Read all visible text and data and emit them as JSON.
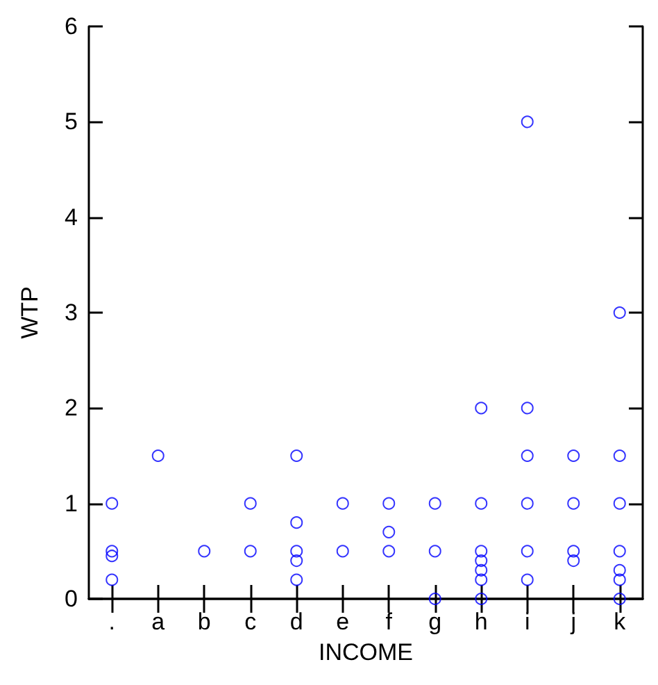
{
  "chart_data": {
    "type": "scatter",
    "xlabel": "INCOME",
    "ylabel": "WTP",
    "categories": [
      ".",
      "a",
      "b",
      "c",
      "d",
      "e",
      "f",
      "g",
      "h",
      "i",
      "j",
      "k"
    ],
    "series": [
      {
        "color": "#0000ff",
        "x": [
          ".",
          ".",
          ".",
          ".",
          "a",
          "b",
          "c",
          "c",
          "d",
          "d",
          "d",
          "d",
          "d",
          "e",
          "e",
          "f",
          "f",
          "f",
          "g",
          "g",
          "g",
          "h",
          "h",
          "h",
          "h",
          "h",
          "h",
          "h",
          "i",
          "i",
          "i",
          "i",
          "i",
          "i",
          "j",
          "j",
          "j",
          "j",
          "k",
          "k",
          "k",
          "k",
          "k",
          "k",
          "k"
        ],
        "values": [
          1,
          0.5,
          0.45,
          0.2,
          1.5,
          0.5,
          1,
          0.5,
          1.5,
          0.8,
          0.5,
          0.4,
          0.2,
          1,
          0.5,
          1,
          0.7,
          0.5,
          1,
          0.5,
          0,
          2,
          1,
          0.5,
          0.4,
          0.3,
          0.2,
          0,
          5,
          2,
          1.5,
          1,
          0.5,
          0.2,
          1.5,
          1,
          0.5,
          0.4,
          3,
          1.5,
          1,
          0.5,
          0.3,
          0.2,
          0
        ]
      }
    ],
    "ylim": [
      0,
      6
    ],
    "yticks": [
      0,
      1,
      2,
      3,
      4,
      5,
      6
    ],
    "marker": "circle",
    "grid": false
  }
}
